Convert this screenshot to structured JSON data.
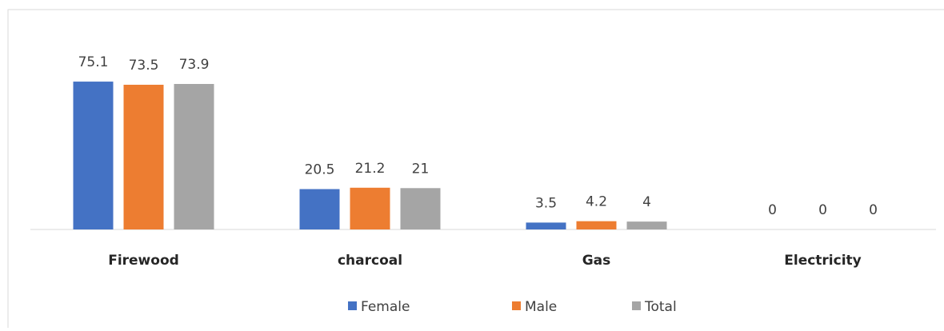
{
  "chart_data": {
    "type": "bar",
    "categories": [
      "Firewood",
      "charcoal",
      "Gas",
      "Electricity"
    ],
    "series": [
      {
        "name": "Female",
        "color": "#4472c4",
        "values": [
          75.1,
          20.5,
          3.5,
          0
        ]
      },
      {
        "name": "Male",
        "color": "#ed7d31",
        "values": [
          73.5,
          21.2,
          4.2,
          0
        ]
      },
      {
        "name": "Total",
        "color": "#a5a5a5",
        "values": [
          73.9,
          21,
          4,
          0
        ]
      }
    ],
    "ylim": [
      0,
      80
    ],
    "legend": "bottom"
  }
}
